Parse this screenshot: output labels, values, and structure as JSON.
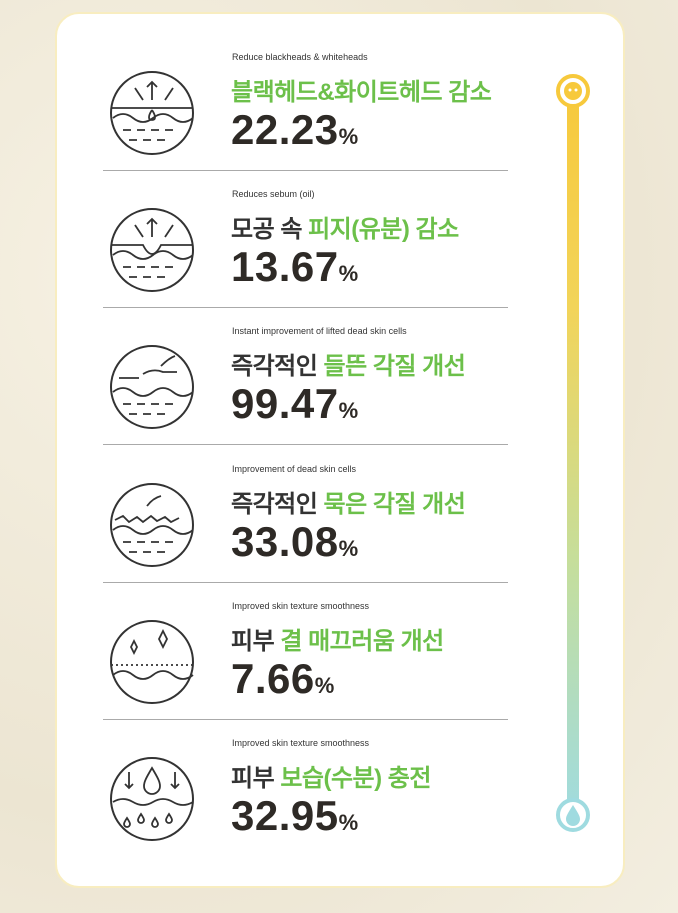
{
  "items": [
    {
      "en": "Reduce blackheads & whiteheads",
      "ko_plain": "",
      "ko_green": "블랙헤드&화이트헤드 감소",
      "value": "22.23",
      "unit": "%",
      "icon": "pore-extraction-icon"
    },
    {
      "en": "Reduces sebum (oil)",
      "ko_plain": "모공 속 ",
      "ko_green": "피지(유분) 감소",
      "value": "13.67",
      "unit": "%",
      "icon": "sebum-pore-icon"
    },
    {
      "en": "Instant improvement of lifted dead skin cells",
      "ko_plain": "즉각적인 ",
      "ko_green": "들뜬 각질 개선",
      "value": "99.47",
      "unit": "%",
      "icon": "lifted-skin-icon"
    },
    {
      "en": "Improvement of dead skin cells",
      "ko_plain": "즉각적인 ",
      "ko_green": "묵은 각질 개선",
      "value": "33.08",
      "unit": "%",
      "icon": "dead-skin-icon"
    },
    {
      "en": "Improved skin texture smoothness",
      "ko_plain": "피부 ",
      "ko_green": "결 매끄러움 개선",
      "value": "7.66",
      "unit": "%",
      "icon": "sparkle-smooth-icon"
    },
    {
      "en": "Improved skin texture smoothness",
      "ko_plain": "피부 ",
      "ko_green": "보습(수분) 충전",
      "value": "32.95",
      "unit": "%",
      "icon": "moisture-drop-icon"
    }
  ],
  "colors": {
    "green": "#6cc04a",
    "yellow": "#f7c93c",
    "aqua": "#9fdbe0",
    "text": "#2e2a26"
  }
}
